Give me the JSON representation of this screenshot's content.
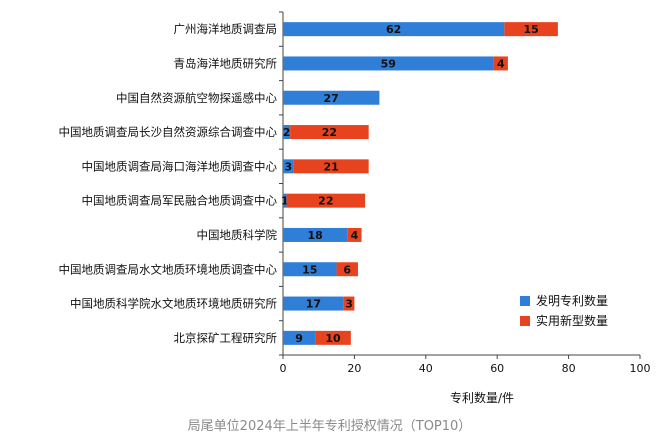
{
  "chart_data": {
    "type": "bar",
    "orientation": "horizontal",
    "stacked": true,
    "categories": [
      "广州海洋地质调查局",
      "青岛海洋地质研究所",
      "中国自然资源航空物探遥感中心",
      "中国地质调查局长沙自然资源综合调查中心",
      "中国地质调查局海口海洋地质调查中心",
      "中国地质调查局军民融合地质调查中心",
      "中国地质科学院",
      "中国地质调查局水文地质环境地质调查中心",
      "中国地质科学院水文地质环境地质研究所",
      "北京探矿工程研究所"
    ],
    "series": [
      {
        "name": "发明专利数量",
        "color": "#2f7ed8",
        "values": [
          62,
          59,
          27,
          2,
          3,
          1,
          18,
          15,
          17,
          9
        ]
      },
      {
        "name": "实用新型数量",
        "color": "#e8431f",
        "values": [
          15,
          4,
          0,
          22,
          21,
          22,
          4,
          6,
          3,
          10
        ]
      }
    ],
    "xlabel": "专利数量/件",
    "xlim": [
      0,
      100
    ],
    "xticks": [
      "0",
      "20",
      "40",
      "60",
      "80",
      "100"
    ],
    "legend_position": "bottom-right",
    "grid": false
  },
  "caption": "局尾单位2024年上半年专利授权情况（TOP10）"
}
